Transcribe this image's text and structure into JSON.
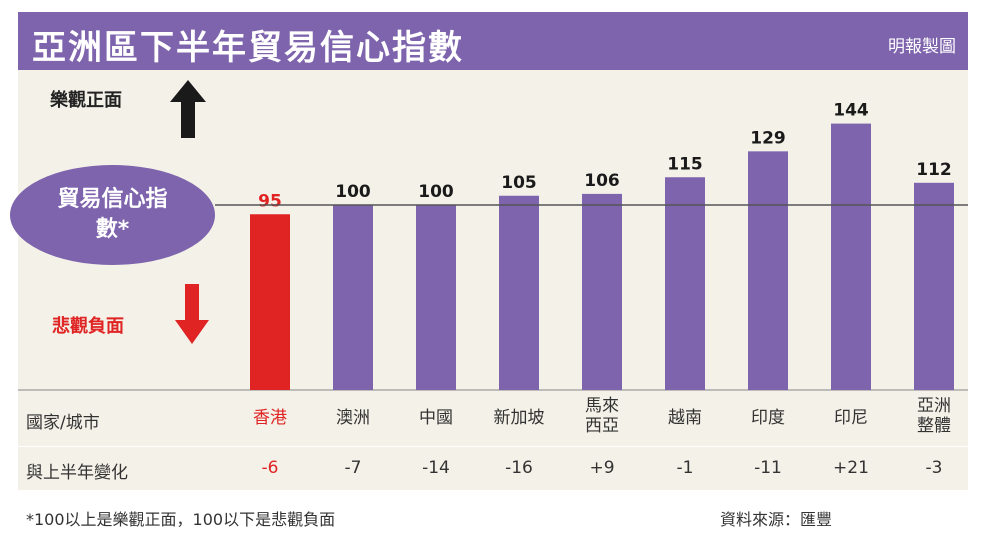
{
  "header": {
    "title": "亞洲區下半年貿易信心指數",
    "source_tag": "明報製圖"
  },
  "annotations": {
    "positive": "樂觀正面",
    "negative": "悲觀負面",
    "index_label_line1": "貿易",
    "index_label_line1b": "信心",
    "index_label": "貿易信心指數*"
  },
  "table": {
    "row1_label": "國家/城市",
    "row2_label": "與上半年變化"
  },
  "footer": {
    "note": "*100以上是樂觀正面，100以下是悲觀負面",
    "source": "資料來源：匯豐"
  },
  "colors": {
    "bar": "#7e63ad",
    "highlight": "#e02424",
    "panel": "#f3f1e8"
  },
  "chart_data": {
    "type": "bar",
    "title": "亞洲區下半年貿易信心指數",
    "categories": [
      "香港",
      "澳洲",
      "中國",
      "新加坡",
      "馬來西亞",
      "越南",
      "印度",
      "印尼",
      "亞洲整體"
    ],
    "category_lines": [
      [
        "香港"
      ],
      [
        "澳洲"
      ],
      [
        "中國"
      ],
      [
        "新加坡"
      ],
      [
        "馬來",
        "西亞"
      ],
      [
        "越南"
      ],
      [
        "印度"
      ],
      [
        "印尼"
      ],
      [
        "亞洲",
        "整體"
      ]
    ],
    "values": [
      95,
      100,
      100,
      105,
      106,
      115,
      129,
      144,
      112
    ],
    "changes": [
      "-6",
      "-7",
      "-14",
      "-16",
      "+9",
      "-1",
      "-11",
      "+21",
      "-3"
    ],
    "highlight_index": 0,
    "reference_value": 100,
    "ylim": [
      0,
      150
    ],
    "value_labels": [
      "95",
      "100",
      "100",
      "105",
      "106",
      "115",
      "129",
      "144",
      "112"
    ]
  }
}
